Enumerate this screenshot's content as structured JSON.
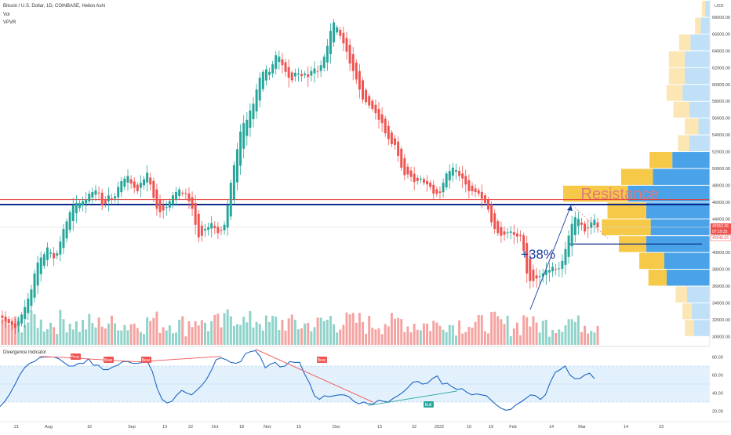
{
  "header": {
    "title": "Bitcoin / U.S. Dollar, 1D, COINBASE, Heikin Ashi",
    "vol_label": "Vol",
    "vpvr_label": "VPVR",
    "currency_label": "USD"
  },
  "chart_data": [
    {
      "type": "candlestick",
      "style": "heikin-ashi",
      "y_unit": "USD",
      "ylim": [
        29000,
        69500
      ],
      "y_ticks": [
        30000,
        32000,
        34000,
        36000,
        38000,
        40000,
        42000,
        44000,
        46000,
        48000,
        50000,
        52000,
        54000,
        56000,
        58000,
        60000,
        62000,
        64000,
        66000,
        68000
      ],
      "y_tick_labels": [
        "30000.00",
        "32000.00",
        "34000.00",
        "36000.00",
        "38000.00",
        "40000.00",
        "42000.00",
        "44000.00",
        "46000.00",
        "48000.00",
        "50000.00",
        "52000.00",
        "54000.00",
        "56000.00",
        "58000.00",
        "60000.00",
        "62000.00",
        "64000.00",
        "66000.00",
        "68000.00"
      ],
      "x_tick_labels": [
        "21",
        "Aug",
        "16",
        "Sep",
        "13",
        "22",
        "Oct",
        "18",
        "Nov",
        "15",
        "Dec",
        "13",
        "22",
        "2022",
        "10",
        "19",
        "Feb",
        "14",
        "Mar",
        "14",
        "23"
      ],
      "grid": false,
      "closes": [
        32200,
        31800,
        31600,
        31300,
        31000,
        31800,
        32600,
        33500,
        34500,
        35600,
        37500,
        38800,
        39400,
        39800,
        40600,
        40000,
        39300,
        39900,
        41300,
        42800,
        43700,
        44800,
        45600,
        45900,
        45900,
        46100,
        46300,
        47000,
        47200,
        47400,
        47100,
        45600,
        45800,
        46800,
        46400,
        46700,
        47800,
        48500,
        48800,
        49100,
        48200,
        47700,
        47300,
        48300,
        48700,
        49500,
        48100,
        46500,
        45200,
        44800,
        45000,
        45400,
        46100,
        46800,
        47200,
        47500,
        47000,
        47000,
        46100,
        45200,
        43300,
        41800,
        42000,
        42800,
        43000,
        43500,
        42900,
        42300,
        42600,
        43300,
        45600,
        48300,
        50400,
        52300,
        54400,
        55400,
        55800,
        56900,
        57700,
        59400,
        60800,
        61500,
        61800,
        61500,
        62400,
        63500,
        63300,
        62300,
        61500,
        60800,
        60500,
        61400,
        61300,
        61000,
        61300,
        60900,
        61600,
        61900,
        61600,
        62300,
        63300,
        64600,
        66400,
        67400,
        66800,
        65800,
        64900,
        63900,
        62500,
        61600,
        60600,
        59400,
        58200,
        57900,
        57500,
        57100,
        56600,
        55800,
        55400,
        54200,
        53500,
        52900,
        52800,
        51500,
        50100,
        49200,
        49300,
        49000,
        48400,
        48500,
        48800,
        48300,
        48100,
        47800,
        47000,
        47000,
        47100,
        48300,
        49400,
        49700,
        50100,
        49800,
        49100,
        48800,
        48100,
        47300,
        47300,
        47200,
        47000,
        46400,
        45900,
        45100,
        43600,
        42800,
        42300,
        42000,
        42100,
        42400,
        42500,
        42100,
        41900,
        42000,
        40200,
        37500,
        36600,
        36600,
        36900,
        37200,
        37500,
        37900,
        37900,
        38300,
        38000,
        38100,
        39000,
        40400,
        42000,
        43400,
        44200,
        44000,
        43300,
        42500,
        42900,
        43600,
        43900,
        43000
      ],
      "price_labels": [
        "42953.36",
        "07:10:35",
        "42046.25"
      ],
      "resistance_label": "Resistance",
      "gain_label": "+38%",
      "resistance_levels": [
        46300,
        45700
      ],
      "support_level": 41000
    },
    {
      "type": "bar",
      "name": "Vol",
      "color_rule": "green on up candles, red on down candles"
    },
    {
      "type": "horizontal-bar",
      "name": "VPVR",
      "bins_low_to_high": [
        30000,
        32000,
        34000,
        36000,
        38000,
        40000,
        42000,
        44000,
        46000,
        48000,
        50000,
        52000,
        54000,
        56000,
        58000,
        60000,
        62000,
        64000,
        66000,
        68000
      ],
      "up_volume": [
        8,
        8,
        10,
        16,
        22,
        24,
        43,
        34,
        57,
        28,
        20,
        10,
        12,
        14,
        14,
        14,
        14,
        10,
        5,
        3
      ],
      "down_volume": [
        14,
        16,
        20,
        38,
        40,
        56,
        52,
        56,
        72,
        50,
        33,
        18,
        10,
        18,
        24,
        22,
        22,
        17,
        8,
        4
      ]
    },
    {
      "type": "line",
      "name": "Divergence Indicator",
      "ylim": [
        10,
        90
      ],
      "y_ticks": [
        20,
        40,
        60,
        80
      ],
      "y_tick_labels": [
        "20.00",
        "40.00",
        "60.00",
        "80.00"
      ],
      "band": [
        30,
        70
      ],
      "divergence_labels": [
        "Bear",
        "Bear",
        "Bear",
        "Bear",
        "Bull"
      ],
      "values": [
        25,
        31,
        39,
        49,
        60,
        68,
        73,
        75,
        79,
        80,
        80,
        80,
        78,
        74,
        70,
        70,
        73,
        73,
        78,
        71,
        71,
        66,
        66,
        69,
        71,
        75,
        75,
        73,
        73,
        74,
        75,
        64,
        45,
        33,
        29,
        31,
        38,
        43,
        40,
        38,
        43,
        48,
        55,
        65,
        77,
        79,
        77,
        74,
        73,
        75,
        84,
        86,
        87,
        80,
        68,
        72,
        74,
        69,
        70,
        75,
        74,
        74,
        61,
        51,
        37,
        33,
        37,
        36,
        37,
        38,
        38,
        36,
        31,
        28,
        30,
        28,
        28,
        32,
        31,
        30,
        34,
        37,
        41,
        46,
        52,
        53,
        50,
        51,
        56,
        59,
        50,
        51,
        47,
        44,
        45,
        41,
        38,
        39,
        38,
        37,
        32,
        27,
        23,
        21,
        22,
        27,
        30,
        34,
        38,
        37,
        33,
        38,
        52,
        63,
        66,
        70,
        60,
        56,
        56,
        60,
        62,
        56
      ]
    }
  ]
}
